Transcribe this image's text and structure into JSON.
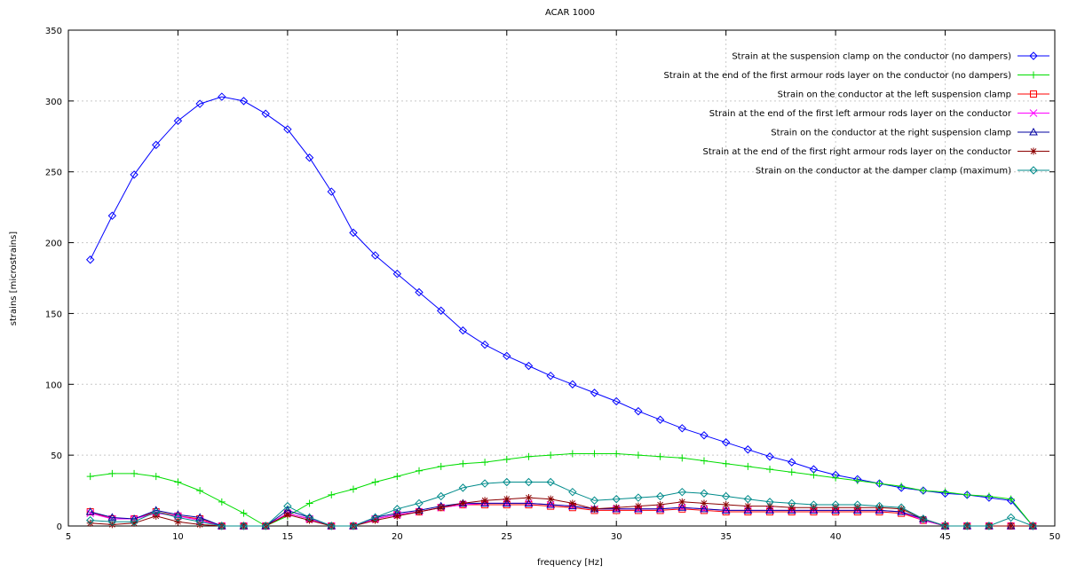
{
  "chart_data": {
    "type": "line",
    "title": "ACAR 1000",
    "xlabel": "frequency [Hz]",
    "ylabel": "strains [microstrains]",
    "xlim": [
      5,
      50
    ],
    "ylim": [
      0,
      350
    ],
    "xticks": [
      5,
      10,
      15,
      20,
      25,
      30,
      35,
      40,
      45,
      50
    ],
    "yticks": [
      0,
      50,
      100,
      150,
      200,
      250,
      300,
      350
    ],
    "grid": true,
    "legend_position": "top-right",
    "x": [
      6,
      7,
      8,
      9,
      10,
      11,
      12,
      13,
      14,
      15,
      16,
      17,
      18,
      19,
      20,
      21,
      22,
      23,
      24,
      25,
      26,
      27,
      28,
      29,
      30,
      31,
      32,
      33,
      34,
      35,
      36,
      37,
      38,
      39,
      40,
      41,
      42,
      43,
      44,
      45,
      46,
      47,
      48,
      49
    ],
    "series": [
      {
        "name": "Strain at the suspension clamp on the conductor (no dampers)",
        "color": "#0000ff",
        "marker": "diamond",
        "values": [
          188,
          219,
          248,
          269,
          286,
          298,
          303,
          300,
          291,
          280,
          260,
          236,
          207,
          191,
          178,
          165,
          152,
          138,
          128,
          120,
          113,
          106,
          100,
          94,
          88,
          81,
          75,
          69,
          64,
          59,
          54,
          49,
          45,
          40,
          36,
          33,
          30,
          27,
          25,
          23,
          22,
          20,
          18,
          0
        ]
      },
      {
        "name": "Strain at the end of the first armour rods layer on the conductor (no dampers)",
        "color": "#00dd00",
        "marker": "plus",
        "values": [
          35,
          37,
          37,
          35,
          31,
          25,
          17,
          9,
          0,
          7,
          16,
          22,
          26,
          31,
          35,
          39,
          42,
          44,
          45,
          47,
          49,
          50,
          51,
          51,
          51,
          50,
          49,
          48,
          46,
          44,
          42,
          40,
          38,
          36,
          34,
          32,
          30,
          28,
          25,
          24,
          22,
          21,
          19,
          0
        ]
      },
      {
        "name": "Strain on the conductor at the left suspension clamp",
        "color": "#ff0000",
        "marker": "square",
        "values": [
          10,
          5,
          5,
          10,
          7,
          5,
          0,
          0,
          0,
          9,
          5,
          0,
          0,
          5,
          8,
          10,
          13,
          15,
          15,
          15,
          15,
          14,
          13,
          11,
          11,
          11,
          11,
          12,
          11,
          10,
          10,
          10,
          10,
          10,
          10,
          10,
          10,
          9,
          4,
          0,
          0,
          0,
          0,
          0
        ]
      },
      {
        "name": "Strain at the end of the first left armour rods layer on the conductor",
        "color": "#ff00ff",
        "marker": "x",
        "values": [
          9,
          5,
          5,
          9,
          7,
          4,
          0,
          0,
          0,
          9,
          5,
          0,
          0,
          5,
          8,
          10,
          13,
          15,
          16,
          16,
          16,
          15,
          14,
          12,
          12,
          12,
          12,
          13,
          12,
          11,
          11,
          11,
          11,
          11,
          11,
          11,
          11,
          10,
          4,
          0,
          0,
          0,
          0,
          0
        ]
      },
      {
        "name": "Strain on the conductor at the right suspension clamp",
        "color": "#0000a0",
        "marker": "triangle",
        "values": [
          10,
          6,
          5,
          11,
          8,
          6,
          0,
          0,
          0,
          11,
          6,
          0,
          0,
          6,
          9,
          11,
          14,
          16,
          16,
          16,
          16,
          15,
          14,
          12,
          12,
          12,
          12,
          13,
          12,
          11,
          11,
          11,
          11,
          11,
          11,
          11,
          11,
          10,
          5,
          0,
          0,
          0,
          0,
          0
        ]
      },
      {
        "name": "Strain at the end of the first right armour rods layer on the conductor",
        "color": "#8b0000",
        "marker": "star",
        "values": [
          2,
          1,
          2,
          7,
          3,
          1,
          0,
          0,
          0,
          8,
          4,
          0,
          0,
          4,
          7,
          10,
          13,
          16,
          18,
          19,
          20,
          19,
          16,
          12,
          13,
          14,
          15,
          17,
          16,
          15,
          14,
          14,
          13,
          13,
          13,
          13,
          13,
          12,
          5,
          0,
          0,
          0,
          0,
          0
        ]
      },
      {
        "name": "Strain on the conductor at the damper clamp (maximum)",
        "color": "#008b8b",
        "marker": "diamond",
        "values": [
          4,
          3,
          3,
          10,
          6,
          3,
          0,
          0,
          0,
          14,
          6,
          0,
          0,
          6,
          12,
          16,
          21,
          27,
          30,
          31,
          31,
          31,
          24,
          18,
          19,
          20,
          21,
          24,
          23,
          21,
          19,
          17,
          16,
          15,
          15,
          15,
          14,
          13,
          5,
          0,
          0,
          0,
          6,
          0
        ]
      }
    ]
  }
}
